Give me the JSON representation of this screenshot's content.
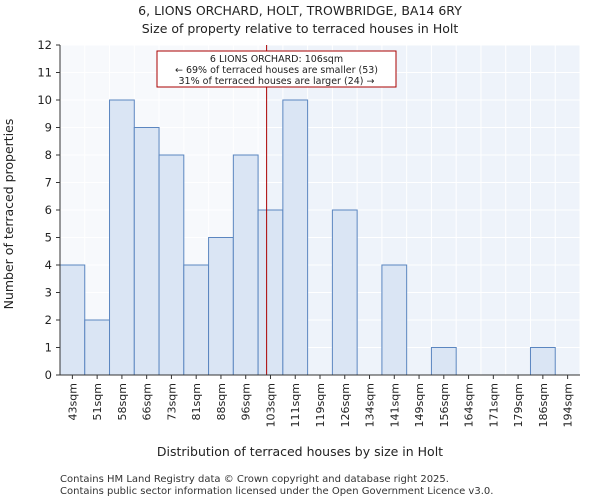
{
  "chart_data": {
    "type": "bar",
    "title": "6, LIONS ORCHARD, HOLT, TROWBRIDGE, BA14 6RY",
    "subtitle": "Size of property relative to terraced houses in Holt",
    "xlabel": "Distribution of terraced houses by size in Holt",
    "ylabel": "Number of terraced properties",
    "categories": [
      "43sqm",
      "51sqm",
      "58sqm",
      "66sqm",
      "73sqm",
      "81sqm",
      "88sqm",
      "96sqm",
      "103sqm",
      "111sqm",
      "119sqm",
      "126sqm",
      "134sqm",
      "141sqm",
      "149sqm",
      "156sqm",
      "164sqm",
      "171sqm",
      "179sqm",
      "186sqm",
      "194sqm"
    ],
    "values": [
      4,
      2,
      10,
      9,
      8,
      4,
      5,
      8,
      6,
      10,
      0,
      6,
      0,
      4,
      0,
      1,
      0,
      0,
      0,
      1,
      0
    ],
    "ylim": [
      0,
      12
    ],
    "yticks": [
      0,
      1,
      2,
      3,
      4,
      5,
      6,
      7,
      8,
      9,
      10,
      11,
      12
    ],
    "grid": true,
    "subject_value": 106,
    "annotation": {
      "line1": "6 LIONS ORCHARD: 106sqm",
      "line2": "← 69% of terraced houses are smaller (53)",
      "line3": "31% of terraced houses are larger (24) →"
    },
    "colors": {
      "bar_fill": "#dae5f4",
      "bar_edge": "#5b86c0",
      "highlight_bg": "#eef3fa",
      "subject_line": "#aa0000",
      "annotation_border": "#aa0000",
      "grid": "#ffffff"
    }
  },
  "footer": {
    "line1": "Contains HM Land Registry data © Crown copyright and database right 2025.",
    "line2": "Contains public sector information licensed under the Open Government Licence v3.0."
  }
}
